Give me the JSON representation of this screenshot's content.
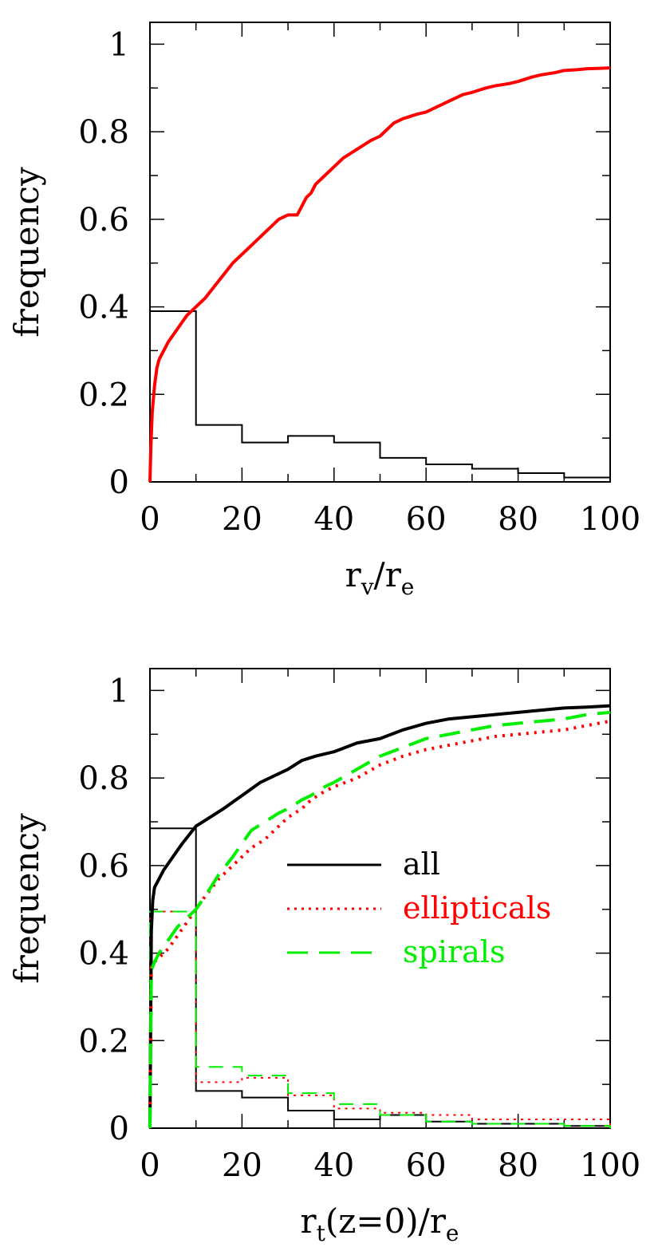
{
  "chart_data": [
    {
      "type": "line",
      "xlabel": "r",
      "xlabel_parts": {
        "r1": "r",
        "sub1": "v",
        "slash": "/",
        "r2": "r",
        "sub2": "e"
      },
      "ylabel": "frequency",
      "xlim": [
        0,
        100
      ],
      "ylim": [
        0,
        1.05
      ],
      "xticks": [
        "0",
        "20",
        "40",
        "60",
        "80",
        "100"
      ],
      "yticks": [
        "0",
        "0.2",
        "0.4",
        "0.6",
        "0.8",
        "1"
      ],
      "grid": false,
      "legend": false,
      "series": [
        {
          "kind": "cumulative",
          "color": "#ff0000",
          "style": "solid-thick",
          "x": [
            0,
            0.2,
            0.5,
            1,
            1.5,
            2,
            3,
            4,
            6,
            8,
            10,
            12,
            15,
            18,
            20,
            22,
            25,
            28,
            30,
            32,
            33,
            34,
            35,
            36,
            38,
            40,
            42,
            45,
            48,
            50,
            53,
            55,
            58,
            60,
            63,
            65,
            68,
            70,
            73,
            75,
            78,
            80,
            83,
            85,
            88,
            90,
            93,
            95,
            98,
            100
          ],
          "y": [
            0,
            0.08,
            0.16,
            0.22,
            0.26,
            0.28,
            0.3,
            0.32,
            0.35,
            0.38,
            0.4,
            0.42,
            0.46,
            0.5,
            0.52,
            0.54,
            0.57,
            0.6,
            0.61,
            0.61,
            0.63,
            0.65,
            0.66,
            0.68,
            0.7,
            0.72,
            0.74,
            0.76,
            0.78,
            0.79,
            0.82,
            0.83,
            0.84,
            0.845,
            0.86,
            0.87,
            0.885,
            0.89,
            0.9,
            0.905,
            0.91,
            0.915,
            0.925,
            0.93,
            0.935,
            0.94,
            0.942,
            0.944,
            0.945,
            0.946
          ]
        },
        {
          "kind": "histogram",
          "color": "#000000",
          "style": "solid-thin",
          "bin_edges": [
            0,
            10,
            20,
            30,
            40,
            50,
            60,
            70,
            80,
            90,
            100
          ],
          "values": [
            0.39,
            0.13,
            0.09,
            0.105,
            0.09,
            0.055,
            0.04,
            0.03,
            0.02,
            0.01
          ]
        }
      ]
    },
    {
      "type": "line",
      "xlabel": "r",
      "xlabel_parts": {
        "r1": "r",
        "sub1": "t",
        "mid": "(z=0)/r",
        "sub2": "e"
      },
      "ylabel": "frequency",
      "xlim": [
        0,
        100
      ],
      "ylim": [
        0,
        1.05
      ],
      "xticks": [
        "0",
        "20",
        "40",
        "60",
        "80",
        "100"
      ],
      "yticks": [
        "0",
        "0.2",
        "0.4",
        "0.6",
        "0.8",
        "1"
      ],
      "grid": false,
      "legend": {
        "placement": "center-right"
      },
      "series": [
        {
          "name": "all",
          "kind": "cumulative",
          "color": "#000000",
          "style": "solid-thick",
          "x": [
            0,
            0.3,
            0.6,
            1,
            2,
            3,
            5,
            7,
            10,
            13,
            16,
            20,
            24,
            28,
            30,
            33,
            36,
            40,
            45,
            50,
            55,
            60,
            65,
            70,
            75,
            80,
            85,
            90,
            95,
            100
          ],
          "y": [
            0,
            0.45,
            0.52,
            0.55,
            0.57,
            0.59,
            0.62,
            0.65,
            0.69,
            0.71,
            0.73,
            0.76,
            0.79,
            0.81,
            0.82,
            0.84,
            0.85,
            0.86,
            0.88,
            0.89,
            0.91,
            0.925,
            0.935,
            0.94,
            0.945,
            0.95,
            0.955,
            0.96,
            0.962,
            0.965
          ]
        },
        {
          "name": "ellipticals",
          "kind": "cumulative",
          "color": "#ff0000",
          "style": "dotted-thick",
          "x": [
            0,
            0.3,
            1,
            2,
            4,
            6,
            8,
            10,
            12,
            15,
            18,
            20,
            22,
            25,
            28,
            30,
            33,
            35,
            38,
            40,
            45,
            50,
            55,
            60,
            65,
            70,
            75,
            80,
            85,
            90,
            95,
            100
          ],
          "y": [
            0,
            0.37,
            0.38,
            0.39,
            0.41,
            0.44,
            0.47,
            0.5,
            0.53,
            0.57,
            0.6,
            0.62,
            0.64,
            0.66,
            0.69,
            0.71,
            0.73,
            0.75,
            0.77,
            0.78,
            0.8,
            0.83,
            0.85,
            0.865,
            0.875,
            0.885,
            0.895,
            0.9,
            0.905,
            0.91,
            0.92,
            0.93
          ]
        },
        {
          "name": "spirals",
          "kind": "cumulative",
          "color": "#00ee00",
          "style": "dashed-thick",
          "x": [
            0,
            0.3,
            1,
            2,
            4,
            6,
            8,
            10,
            12,
            15,
            18,
            20,
            22,
            25,
            28,
            30,
            33,
            35,
            38,
            40,
            45,
            50,
            55,
            60,
            65,
            70,
            75,
            80,
            85,
            90,
            95,
            100
          ],
          "y": [
            0,
            0.36,
            0.38,
            0.4,
            0.43,
            0.46,
            0.48,
            0.5,
            0.53,
            0.58,
            0.62,
            0.65,
            0.68,
            0.7,
            0.72,
            0.73,
            0.75,
            0.76,
            0.78,
            0.79,
            0.82,
            0.85,
            0.87,
            0.89,
            0.9,
            0.91,
            0.92,
            0.925,
            0.93,
            0.935,
            0.945,
            0.95
          ]
        },
        {
          "name": "all",
          "kind": "histogram",
          "color": "#000000",
          "style": "solid-thin",
          "bin_edges": [
            0,
            10,
            20,
            30,
            40,
            50,
            60,
            70,
            80,
            90,
            100
          ],
          "values": [
            0.685,
            0.085,
            0.07,
            0.04,
            0.02,
            0.03,
            0.015,
            0.01,
            0.01,
            0.005
          ]
        },
        {
          "name": "ellipticals",
          "kind": "histogram",
          "color": "#ff0000",
          "style": "dotted-thin",
          "bin_edges": [
            0,
            10,
            20,
            30,
            40,
            50,
            60,
            70,
            80,
            90,
            100
          ],
          "values": [
            0.495,
            0.105,
            0.115,
            0.075,
            0.045,
            0.035,
            0.03,
            0.02,
            0.02,
            0.02
          ]
        },
        {
          "name": "spirals",
          "kind": "histogram",
          "color": "#00ee00",
          "style": "dashed-thin",
          "bin_edges": [
            0,
            10,
            20,
            30,
            40,
            50,
            60,
            70,
            80,
            90,
            100
          ],
          "values": [
            0.495,
            0.14,
            0.12,
            0.08,
            0.055,
            0.03,
            0.015,
            0.01,
            0.01,
            0.005
          ]
        }
      ],
      "legend_entries": [
        {
          "label": "all",
          "color": "#000000",
          "style": "solid"
        },
        {
          "label": "ellipticals",
          "color": "#ff0000",
          "style": "dotted"
        },
        {
          "label": "spirals",
          "color": "#00ee00",
          "style": "dashed"
        }
      ]
    }
  ]
}
